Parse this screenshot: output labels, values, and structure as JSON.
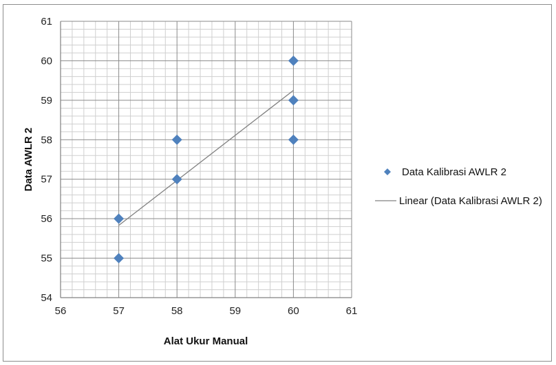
{
  "chart_data": {
    "type": "scatter",
    "xlabel": "Alat Ukur Manual",
    "ylabel": "Data AWLR 2",
    "xlim": [
      56,
      61
    ],
    "ylim": [
      54,
      61
    ],
    "x_ticks": [
      "56",
      "57",
      "58",
      "59",
      "60",
      "61"
    ],
    "y_ticks": [
      "54",
      "55",
      "56",
      "57",
      "58",
      "59",
      "60",
      "61"
    ],
    "grid": true,
    "minor_grid": true,
    "legend_position": "right",
    "series": [
      {
        "name": "Data Kalibrasi AWLR 2",
        "marker": "diamond",
        "color": "#4f81bd",
        "points": [
          {
            "x": 57,
            "y": 56
          },
          {
            "x": 57,
            "y": 55
          },
          {
            "x": 58,
            "y": 58
          },
          {
            "x": 58,
            "y": 57
          },
          {
            "x": 60,
            "y": 60
          },
          {
            "x": 60,
            "y": 59
          },
          {
            "x": 60,
            "y": 58
          }
        ]
      }
    ],
    "trendline": {
      "name": "Linear (Data Kalibrasi AWLR 2)",
      "type": "linear",
      "color": "#808080",
      "from": {
        "x": 57,
        "y": 55.83
      },
      "to": {
        "x": 60,
        "y": 59.25
      }
    }
  }
}
